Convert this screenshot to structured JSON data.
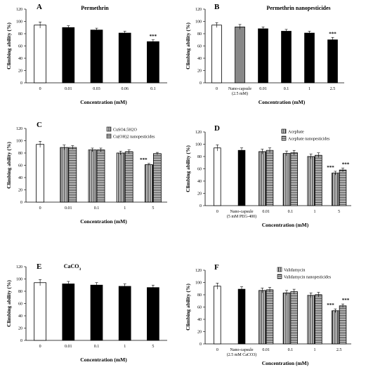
{
  "chart_data": [
    {
      "type": "bar",
      "letter": "A",
      "title": "Permethrin",
      "ylabel": "Climbing ability (%)",
      "xlabel": "Concentration (mM)",
      "ylim": [
        0,
        120
      ],
      "yticks": [
        "0",
        "20",
        "40",
        "60",
        "80",
        "100",
        "120"
      ],
      "categories": [
        "0",
        "0.01",
        "0.03",
        "0.06",
        "0.1"
      ],
      "series": [
        {
          "values": [
            94,
            90,
            86,
            81,
            67
          ],
          "errors": [
            5,
            3,
            3,
            3,
            3
          ],
          "styles": [
            "white",
            "black",
            "black",
            "black",
            "black"
          ]
        }
      ],
      "annotations": [
        {
          "category": "0.1",
          "text": "***"
        }
      ]
    },
    {
      "type": "bar",
      "letter": "B",
      "title": "Permethrin nanopesticides",
      "ylabel": "Climbing ability (%)",
      "xlabel": "Concentration (mM)",
      "ylim": [
        0,
        120
      ],
      "yticks": [
        "0",
        "20",
        "40",
        "60",
        "80",
        "100",
        "120"
      ],
      "categories": [
        "0",
        "Nano-capsule|(2.5 mM)",
        "0.01",
        "0.1",
        "1",
        "2.5"
      ],
      "series": [
        {
          "values": [
            94,
            91,
            88,
            84,
            81,
            70
          ],
          "errors": [
            4,
            4,
            3,
            3,
            3,
            4
          ],
          "styles": [
            "white",
            "gray",
            "black",
            "black",
            "black",
            "black"
          ]
        }
      ],
      "annotations": [
        {
          "category": "2.5",
          "text": "***"
        }
      ]
    },
    {
      "type": "bar",
      "letter": "C",
      "title": "",
      "ylabel": "Climbing ability (%)",
      "xlabel": "Concentration (mM)",
      "ylim": [
        0,
        120
      ],
      "yticks": [
        "0",
        "20",
        "40",
        "60",
        "80",
        "100",
        "120"
      ],
      "categories": [
        "0",
        "0.01",
        "0.1",
        "1",
        "5"
      ],
      "legend": [
        "CuSO4.5H2O",
        "Cu(OH)2 nanopesticides"
      ],
      "series": [
        {
          "name": "CuSO4.5H2O",
          "values": [
            94,
            89,
            85,
            80,
            61
          ],
          "errors": [
            5,
            4,
            3,
            3,
            2
          ]
        },
        {
          "name": "Cu(OH)2 nanopesticides",
          "values": [
            null,
            89,
            85,
            82,
            79
          ],
          "errors": [
            null,
            3,
            3,
            3,
            2
          ]
        }
      ],
      "annotations": [
        {
          "category": "5",
          "text": "***"
        }
      ]
    },
    {
      "type": "bar",
      "letter": "D",
      "title": "",
      "ylabel": "Climbing ability (%)",
      "xlabel": "Concentration (mM)",
      "ylim": [
        0,
        120
      ],
      "yticks": [
        "0",
        "20",
        "40",
        "60",
        "80",
        "100",
        "120"
      ],
      "categories": [
        "0",
        "Nano-capsule|(5 mM PEG-400)",
        "0.01",
        "0.1",
        "1",
        "5"
      ],
      "legend": [
        "Acephate",
        "Acephate nanopesticides"
      ],
      "series": [
        {
          "name": "Acephate",
          "values": [
            94,
            90,
            88,
            85,
            80,
            53
          ],
          "errors": [
            5,
            4,
            4,
            4,
            4,
            3
          ]
        },
        {
          "name": "Acephate nanopesticides",
          "values": [
            null,
            null,
            90,
            86,
            82,
            58
          ],
          "errors": [
            null,
            null,
            4,
            4,
            4,
            3
          ]
        }
      ],
      "annotations": [
        {
          "category": "5",
          "text": "***"
        },
        {
          "category": "5",
          "text": "***"
        }
      ]
    },
    {
      "type": "bar",
      "letter": "E",
      "title": "CaCO3",
      "ylabel": "Climbing ability (%)",
      "xlabel": "Concentration (mM)",
      "ylim": [
        0,
        120
      ],
      "yticks": [
        "0",
        "20",
        "40",
        "60",
        "80",
        "100",
        "120"
      ],
      "categories": [
        "0",
        "0.01",
        "0.1",
        "1",
        "5"
      ],
      "series": [
        {
          "values": [
            94,
            92,
            90,
            88,
            86
          ],
          "errors": [
            5,
            4,
            4,
            4,
            4
          ],
          "styles": [
            "white",
            "black",
            "black",
            "black",
            "black"
          ]
        }
      ]
    },
    {
      "type": "bar",
      "letter": "F",
      "title": "",
      "ylabel": "Climbing ability (%)",
      "xlabel": "Concentration (mM)",
      "ylim": [
        0,
        120
      ],
      "yticks": [
        "0",
        "20",
        "40",
        "60",
        "80",
        "100",
        "120"
      ],
      "categories": [
        "0",
        "Nano-capsule|(2.5 mM CaCO3)",
        "0.01",
        "0.1",
        "1",
        "2.5"
      ],
      "legend": [
        "Validamycin",
        "Validamycin nanopesticides"
      ],
      "series": [
        {
          "name": "Validamycin",
          "values": [
            94,
            89,
            87,
            83,
            79,
            54
          ],
          "errors": [
            5,
            4,
            4,
            4,
            4,
            3
          ]
        },
        {
          "name": "Validamycin nanopesticides",
          "values": [
            null,
            null,
            88,
            85,
            80,
            62
          ],
          "errors": [
            null,
            null,
            4,
            4,
            4,
            3
          ]
        }
      ],
      "annotations": [
        {
          "category": "2.5",
          "text": "***"
        },
        {
          "category": "2.5",
          "text": "***"
        }
      ]
    }
  ]
}
